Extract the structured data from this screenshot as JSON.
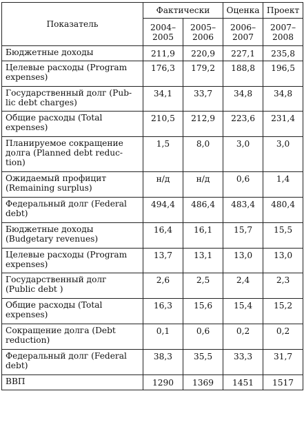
{
  "table": {
    "header": {
      "indicator": "Показатель",
      "group_actual": "Фактически",
      "group_estimate": "Оценка",
      "group_project": "Проект",
      "years": [
        [
          "2004–",
          "2005"
        ],
        [
          "2005–",
          "2006"
        ],
        [
          "2006–",
          "2007"
        ],
        [
          "2007–",
          "2008"
        ]
      ]
    },
    "rows": [
      {
        "label": [
          "Бюджетные доходы"
        ],
        "values": [
          "211,9",
          "220,9",
          "227,1",
          "235,8"
        ]
      },
      {
        "label": [
          "Целевые расходы (Program",
          "expenses)"
        ],
        "values": [
          "176,3",
          "179,2",
          "188,8",
          "196,5"
        ]
      },
      {
        "label": [
          "Государственный долг (Pub-",
          "lic debt charges)"
        ],
        "values": [
          "34,1",
          "33,7",
          "34,8",
          "34,8"
        ]
      },
      {
        "label": [
          "Общие расходы (Total",
          "expenses)"
        ],
        "values": [
          "210,5",
          "212,9",
          "223,6",
          "231,4"
        ]
      },
      {
        "label": [
          "Планируемое сокращение",
          "долга (Planned debt reduc-",
          "tion)"
        ],
        "values": [
          "1,5",
          "8,0",
          "3,0",
          "3,0"
        ]
      },
      {
        "label": [
          "Ожидаемый профицит",
          "(Remaining surplus)"
        ],
        "values": [
          "н/д",
          "н/д",
          "0,6",
          "1,4"
        ]
      },
      {
        "label": [
          "Федеральный долг (Federal",
          "debt)"
        ],
        "values": [
          "494,4",
          "486,4",
          "483,4",
          "480,4"
        ]
      },
      {
        "label": [
          "Бюджетные доходы",
          "(Budgetary revenues)"
        ],
        "values": [
          "16,4",
          "16,1",
          "15,7",
          "15,5"
        ]
      },
      {
        "label": [
          "Целевые расходы (Program",
          "expenses)"
        ],
        "values": [
          "13,7",
          "13,1",
          "13,0",
          "13,0"
        ]
      },
      {
        "label": [
          "Государственный долг",
          "(Public debt )"
        ],
        "values": [
          "2,6",
          "2,5",
          "2,4",
          "2,3"
        ]
      },
      {
        "label": [
          "Общие расходы (Total",
          "expenses)"
        ],
        "values": [
          "16,3",
          "15,6",
          "15,4",
          "15,2"
        ]
      },
      {
        "label": [
          "Сокращение долга (Debt",
          "reduction)"
        ],
        "values": [
          "0,1",
          "0,6",
          "0,2",
          "0,2"
        ]
      },
      {
        "label": [
          "Федеральный долг (Federal",
          "debt)"
        ],
        "values": [
          "38,3",
          "35,5",
          "33,3",
          "31,7"
        ]
      },
      {
        "label": [
          "ВВП"
        ],
        "values": [
          "1290",
          "1369",
          "1451",
          "1517"
        ]
      }
    ]
  }
}
